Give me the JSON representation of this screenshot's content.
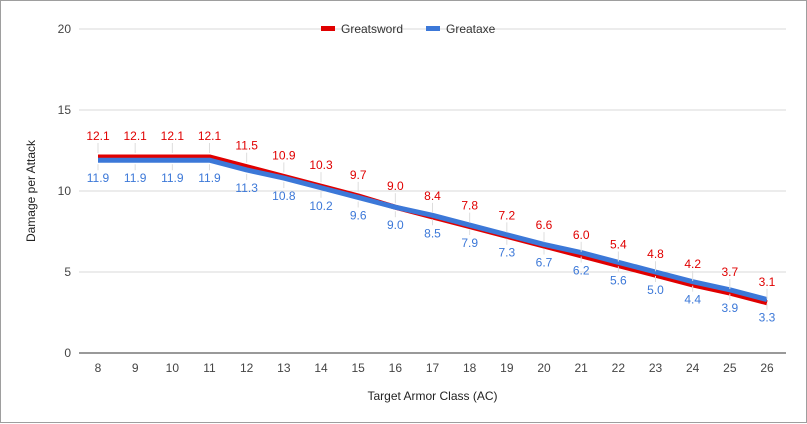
{
  "chart_data": {
    "type": "line",
    "title": "",
    "xlabel": "Target Armor Class (AC)",
    "ylabel": "Damage per Attack",
    "x": [
      8,
      9,
      10,
      11,
      12,
      13,
      14,
      15,
      16,
      17,
      18,
      19,
      20,
      21,
      22,
      23,
      24,
      25,
      26
    ],
    "ylim": [
      0,
      20
    ],
    "yticks": [
      0,
      5,
      10,
      15,
      20
    ],
    "grid": true,
    "legend_position": "top-center",
    "series": [
      {
        "name": "Greatsword",
        "color": "#e00000",
        "values": [
          12.1,
          12.1,
          12.1,
          12.1,
          11.5,
          10.9,
          10.3,
          9.7,
          9.0,
          8.4,
          7.8,
          7.2,
          6.6,
          6.0,
          5.4,
          4.8,
          4.2,
          3.7,
          3.1
        ]
      },
      {
        "name": "Greataxe",
        "color": "#3c78d8",
        "values": [
          11.9,
          11.9,
          11.9,
          11.9,
          11.3,
          10.8,
          10.2,
          9.6,
          9.0,
          8.5,
          7.9,
          7.3,
          6.7,
          6.2,
          5.6,
          5.0,
          4.4,
          3.9,
          3.3
        ]
      }
    ]
  }
}
